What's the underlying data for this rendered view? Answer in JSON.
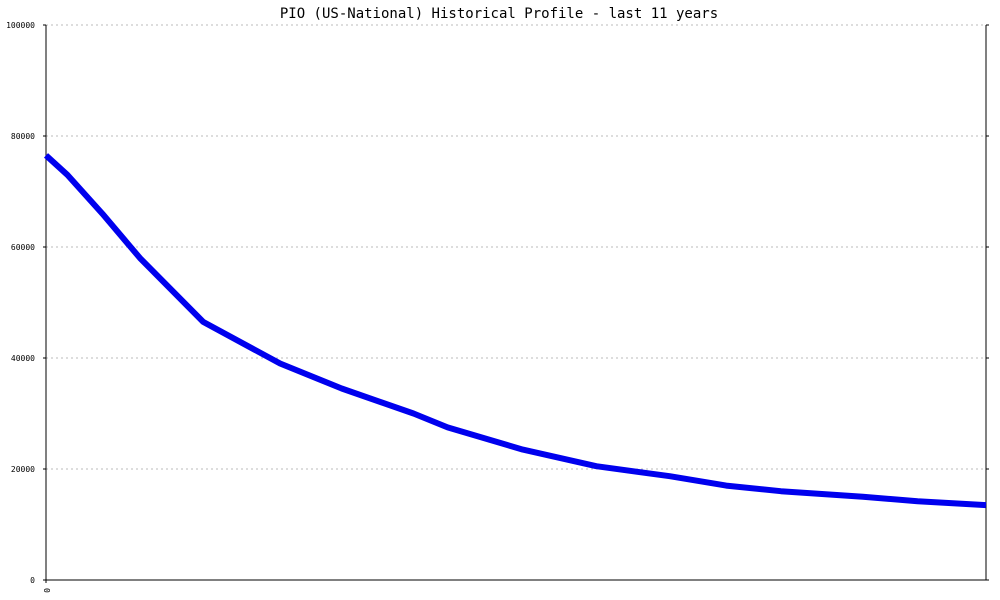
{
  "chart_data": {
    "type": "line",
    "title": "PIO (US-National) Historical Profile - last 11 years",
    "xlabel": "",
    "ylabel": "",
    "ylim": [
      0,
      100000
    ],
    "yticks": [
      "0",
      "20000",
      "40000",
      "60000",
      "80000",
      "100000"
    ],
    "xticks": [
      "0"
    ],
    "grid": true,
    "legend": "none",
    "series": [
      {
        "color": "#0000ee",
        "points": [
          {
            "x": 0,
            "y": 76500
          },
          {
            "x": 0.25,
            "y": 73000
          },
          {
            "x": 0.66,
            "y": 66000
          },
          {
            "x": 1.1,
            "y": 58000
          },
          {
            "x": 1.84,
            "y": 46500
          },
          {
            "x": 2.74,
            "y": 39000
          },
          {
            "x": 3.46,
            "y": 34500
          },
          {
            "x": 4.3,
            "y": 30000
          },
          {
            "x": 4.7,
            "y": 27500
          },
          {
            "x": 5.58,
            "y": 23500
          },
          {
            "x": 6.44,
            "y": 20500
          },
          {
            "x": 7.3,
            "y": 18700
          },
          {
            "x": 7.96,
            "y": 17000
          },
          {
            "x": 8.6,
            "y": 16000
          },
          {
            "x": 9.56,
            "y": 15000
          },
          {
            "x": 10.2,
            "y": 14200
          },
          {
            "x": 11,
            "y": 13500
          }
        ]
      }
    ],
    "xlim": [
      0,
      11
    ]
  }
}
